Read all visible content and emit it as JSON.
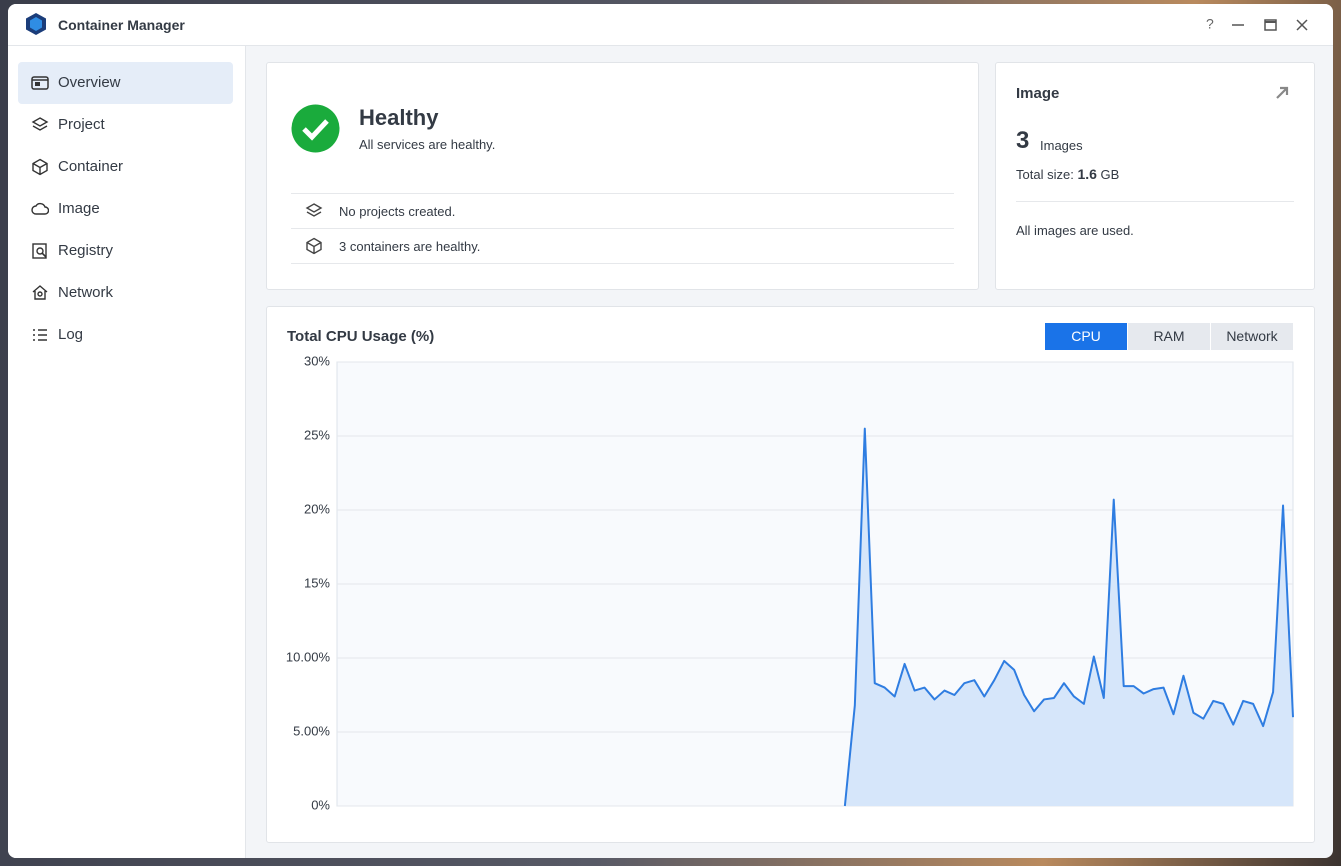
{
  "window": {
    "title": "Container Manager"
  },
  "sidebar": {
    "items": [
      "Overview",
      "Project",
      "Container",
      "Image",
      "Registry",
      "Network",
      "Log"
    ],
    "selected": 0
  },
  "health": {
    "status": "Healthy",
    "message": "All services are healthy.",
    "rows": [
      "No projects created.",
      "3 containers are healthy."
    ]
  },
  "image_card": {
    "title": "Image",
    "count": "3",
    "count_unit": "Images",
    "size_label": "Total size:",
    "size_value": "1.6",
    "size_unit": "GB",
    "note": "All images are used."
  },
  "chart_tabs": {
    "items": [
      "CPU",
      "RAM",
      "Network"
    ],
    "selected": 0
  },
  "chart_data": {
    "type": "area",
    "title": "Total CPU Usage (%)",
    "color": "#2f7de1",
    "fill": "#d6e6fa",
    "grid": true,
    "ylim": [
      0,
      30
    ],
    "yticks": [
      {
        "value": 0,
        "label": "0%"
      },
      {
        "value": 5,
        "label": "5.00%"
      },
      {
        "value": 10,
        "label": "10.00%"
      },
      {
        "value": 15,
        "label": "15%"
      },
      {
        "value": 20,
        "label": "20%"
      },
      {
        "value": 25,
        "label": "25%"
      },
      {
        "value": 30,
        "label": "30%"
      }
    ],
    "values": [
      null,
      null,
      null,
      null,
      null,
      null,
      null,
      null,
      null,
      null,
      null,
      null,
      null,
      null,
      null,
      null,
      null,
      null,
      null,
      null,
      null,
      null,
      null,
      null,
      null,
      null,
      null,
      null,
      null,
      null,
      null,
      null,
      null,
      null,
      null,
      null,
      null,
      null,
      null,
      null,
      null,
      null,
      null,
      null,
      null,
      null,
      null,
      null,
      null,
      null,
      null,
      0,
      6.8,
      25.5,
      8.3,
      8.0,
      7.4,
      9.6,
      7.8,
      8.0,
      7.2,
      7.8,
      7.5,
      8.3,
      8.5,
      7.4,
      8.5,
      9.8,
      9.2,
      7.5,
      6.4,
      7.2,
      7.3,
      8.3,
      7.4,
      6.9,
      10.1,
      7.3,
      20.7,
      8.1,
      8.1,
      7.6,
      7.9,
      8.0,
      6.2,
      8.8,
      6.3,
      5.9,
      7.1,
      6.9,
      5.5,
      7.1,
      6.9,
      5.4,
      7.7,
      20.3,
      6.0
    ]
  }
}
